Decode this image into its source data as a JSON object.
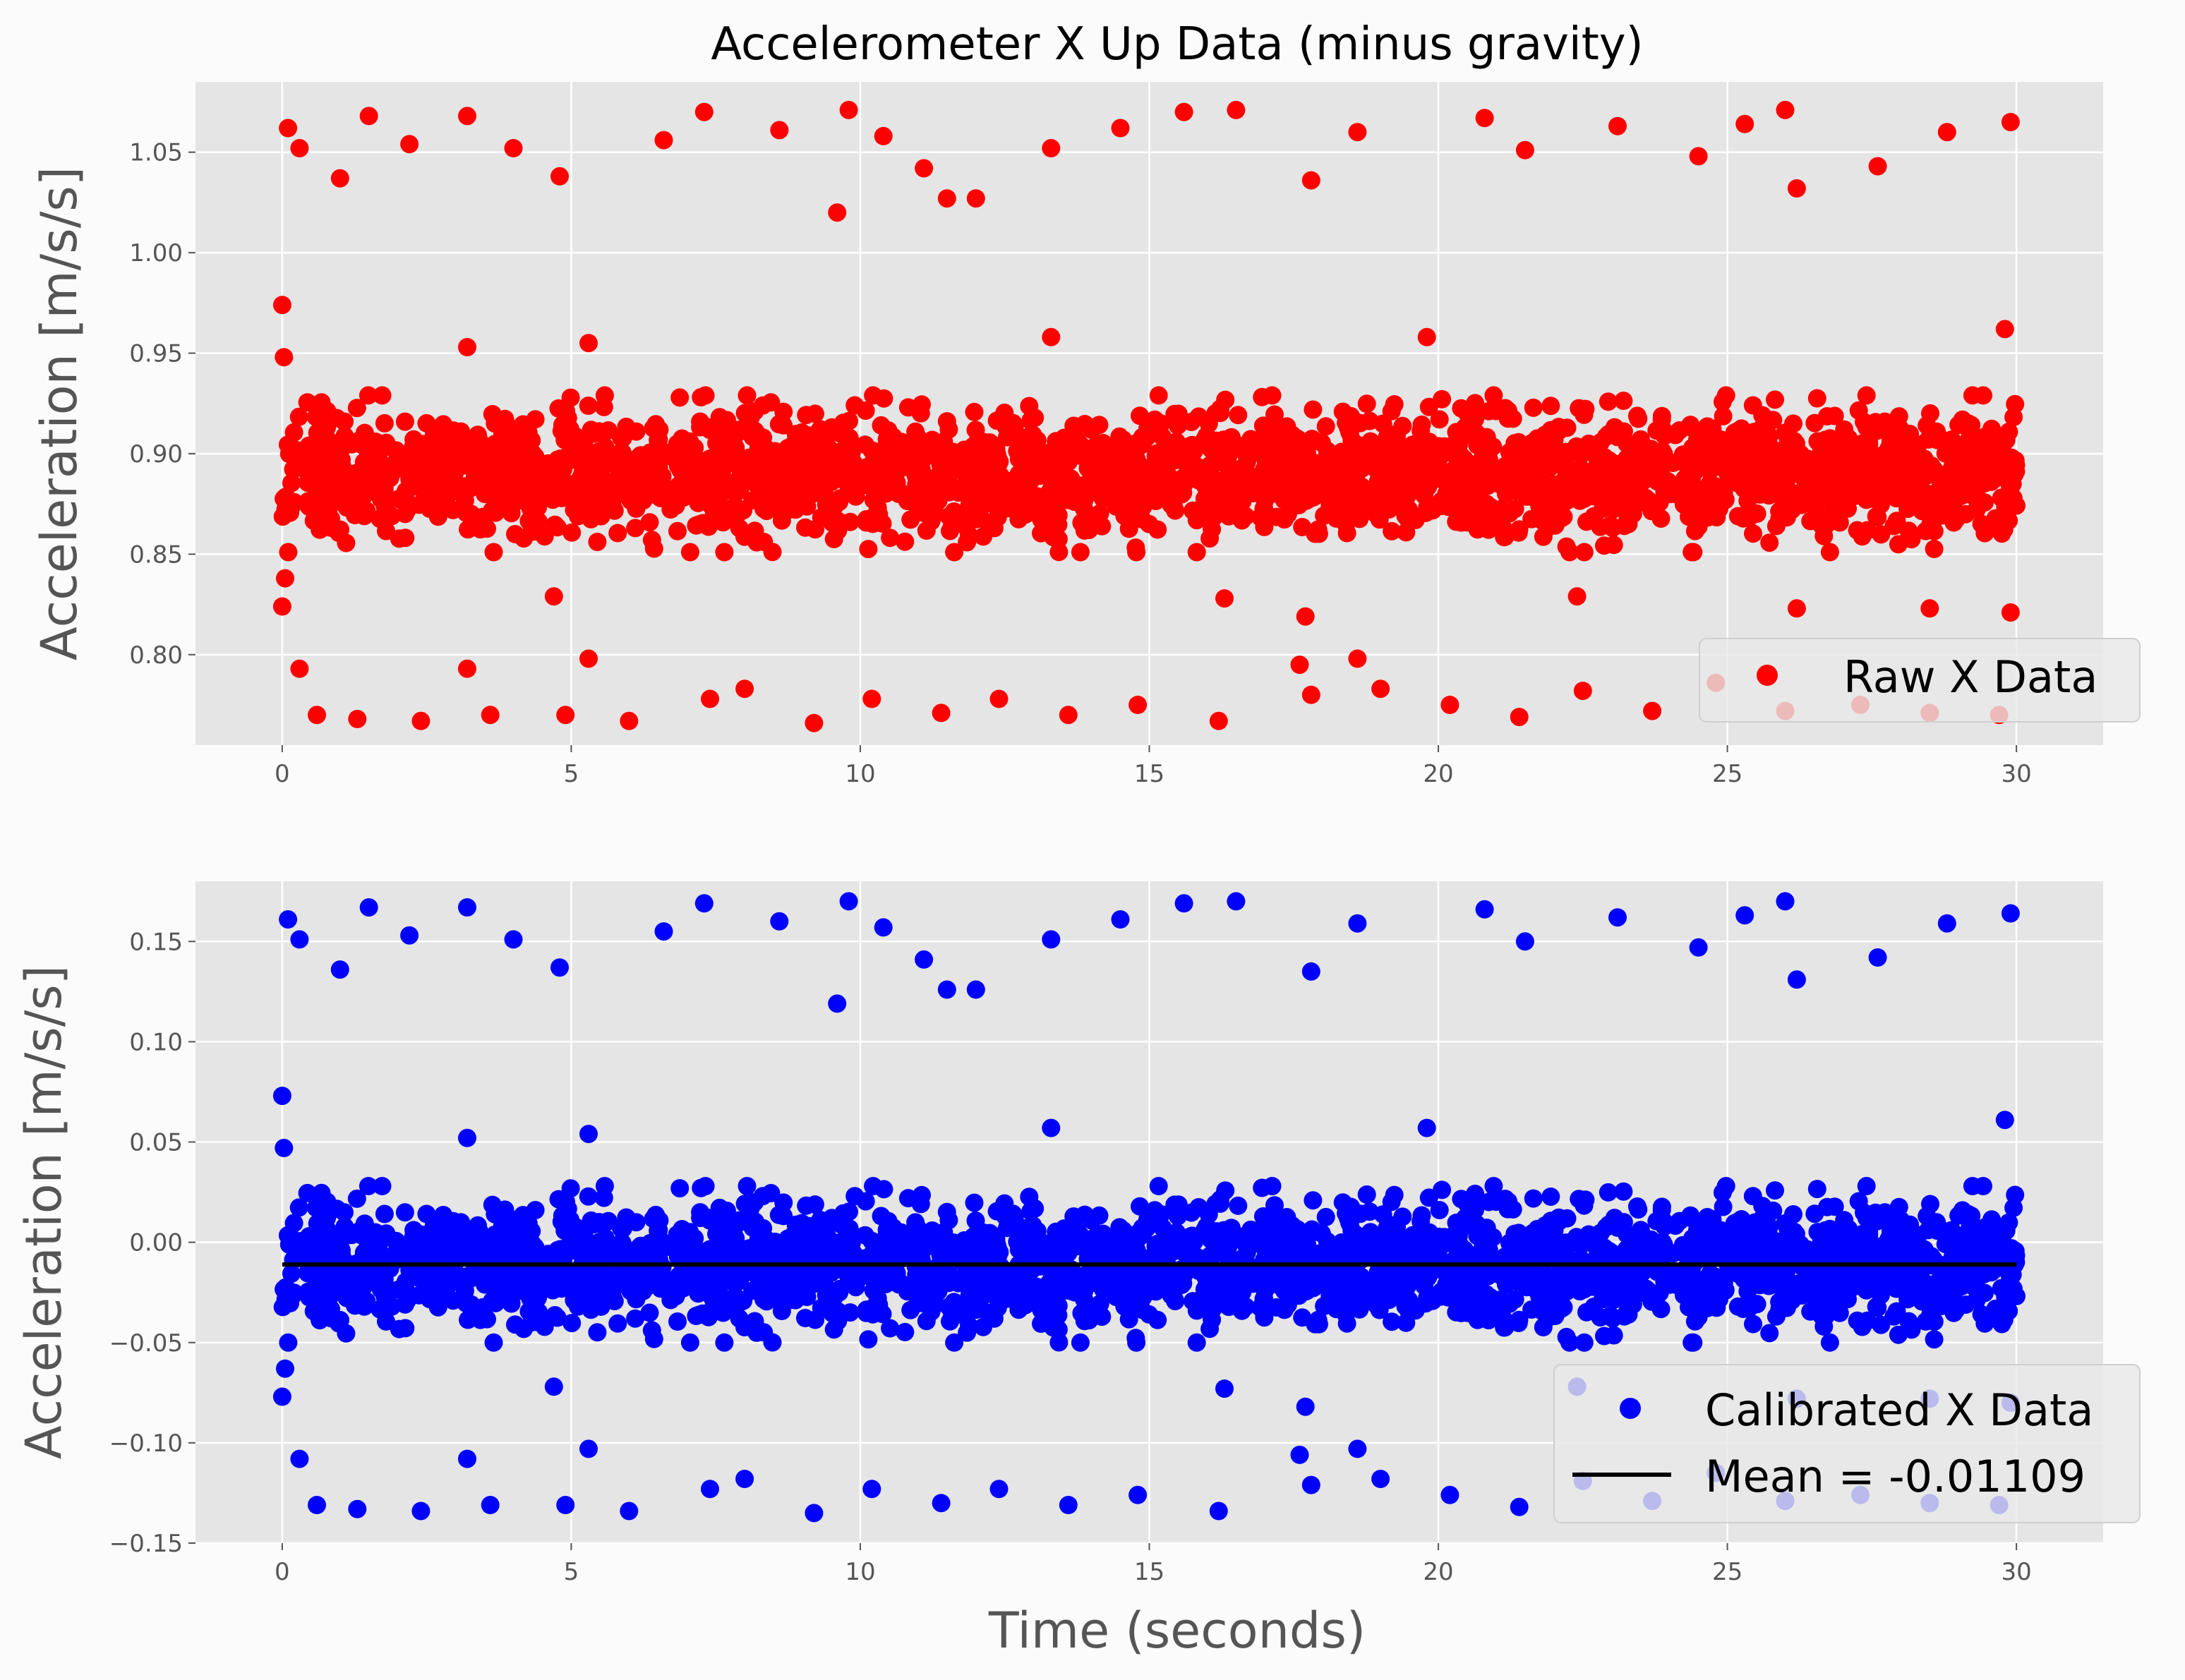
{
  "title": "Accelerometer X Up Data (minus gravity)",
  "colors": {
    "background": "#fbfbfb",
    "axes_background": "#e5e5e5",
    "grid": "#ffffff",
    "raw": "#ff0000",
    "calibrated": "#0000ff",
    "mean": "#000000"
  },
  "chart_data": [
    {
      "type": "scatter",
      "title": "Accelerometer X Up Data (minus gravity)",
      "xlabel": "",
      "ylabel": "Acceleration [m/s/s]",
      "xlim": [
        -1.5,
        31.5
      ],
      "ylim": [
        0.755,
        1.085
      ],
      "xticks": [
        0,
        5,
        10,
        15,
        20,
        25,
        30
      ],
      "xtick_labels": [
        "0",
        "5",
        "10",
        "15",
        "20",
        "25",
        "30"
      ],
      "yticks": [
        0.8,
        0.85,
        0.9,
        0.95,
        1.0,
        1.05
      ],
      "ytick_labels": [
        "0.80",
        "0.85",
        "0.90",
        "0.95",
        "1.00",
        "1.05"
      ],
      "grid": true,
      "legend_position": "lower-right",
      "series": [
        {
          "name": "Raw X Data",
          "color": "#ff0000",
          "marker": "circle",
          "x_range": [
            0,
            30
          ],
          "center": 0.89,
          "core_band": [
            0.86,
            0.92
          ],
          "outliers": [
            [
              0.0,
              0.974
            ],
            [
              0.03,
              0.948
            ],
            [
              0.0,
              0.824
            ],
            [
              0.05,
              0.838
            ],
            [
              3.2,
              0.953
            ],
            [
              5.3,
              0.955
            ],
            [
              13.3,
              0.958
            ],
            [
              19.8,
              0.958
            ],
            [
              29.8,
              0.962
            ],
            [
              17.7,
              0.819
            ],
            [
              26.2,
              0.823
            ],
            [
              28.5,
              0.823
            ],
            [
              29.9,
              0.821
            ],
            [
              16.3,
              0.828
            ],
            [
              4.7,
              0.829
            ],
            [
              22.4,
              0.829
            ],
            [
              0.3,
              0.793
            ],
            [
              3.2,
              0.793
            ],
            [
              5.3,
              0.798
            ],
            [
              17.6,
              0.795
            ],
            [
              18.6,
              0.798
            ],
            [
              9.6,
              1.02
            ],
            [
              11.5,
              1.027
            ],
            [
              12.0,
              1.027
            ],
            [
              26.2,
              1.032
            ],
            [
              0.1,
              1.062
            ],
            [
              1.5,
              1.068
            ],
            [
              3.2,
              1.068
            ],
            [
              7.3,
              1.07
            ],
            [
              9.8,
              1.071
            ],
            [
              15.6,
              1.07
            ],
            [
              16.5,
              1.071
            ],
            [
              26.0,
              1.071
            ],
            [
              29.9,
              1.065
            ],
            [
              0.3,
              1.052
            ],
            [
              2.2,
              1.054
            ],
            [
              4.0,
              1.052
            ],
            [
              6.6,
              1.056
            ],
            [
              10.4,
              1.058
            ],
            [
              13.3,
              1.052
            ],
            [
              18.6,
              1.06
            ],
            [
              20.8,
              1.067
            ],
            [
              23.1,
              1.063
            ],
            [
              25.3,
              1.064
            ],
            [
              28.8,
              1.06
            ],
            [
              1.0,
              1.037
            ],
            [
              4.8,
              1.038
            ],
            [
              8.6,
              1.061
            ],
            [
              11.1,
              1.042
            ],
            [
              14.5,
              1.062
            ],
            [
              17.8,
              1.036
            ],
            [
              21.5,
              1.051
            ],
            [
              24.5,
              1.048
            ],
            [
              27.6,
              1.043
            ],
            [
              0.6,
              0.77
            ],
            [
              1.3,
              0.768
            ],
            [
              2.4,
              0.767
            ],
            [
              3.6,
              0.77
            ],
            [
              4.9,
              0.77
            ],
            [
              6.0,
              0.767
            ],
            [
              7.4,
              0.778
            ],
            [
              8.0,
              0.783
            ],
            [
              9.2,
              0.766
            ],
            [
              10.2,
              0.778
            ],
            [
              11.4,
              0.771
            ],
            [
              12.4,
              0.778
            ],
            [
              13.6,
              0.77
            ],
            [
              14.8,
              0.775
            ],
            [
              16.2,
              0.767
            ],
            [
              17.8,
              0.78
            ],
            [
              19.0,
              0.783
            ],
            [
              20.2,
              0.775
            ],
            [
              21.4,
              0.769
            ],
            [
              22.5,
              0.782
            ],
            [
              23.7,
              0.772
            ],
            [
              24.8,
              0.786
            ],
            [
              26.0,
              0.772
            ],
            [
              27.3,
              0.775
            ],
            [
              28.5,
              0.771
            ],
            [
              29.7,
              0.77
            ]
          ]
        }
      ]
    },
    {
      "type": "scatter",
      "title": "",
      "xlabel": "Time (seconds)",
      "ylabel": "Acceleration [m/s/s]",
      "xlim": [
        -1.5,
        31.5
      ],
      "ylim": [
        -0.15,
        0.18
      ],
      "xticks": [
        0,
        5,
        10,
        15,
        20,
        25,
        30
      ],
      "xtick_labels": [
        "0",
        "5",
        "10",
        "15",
        "20",
        "25",
        "30"
      ],
      "yticks": [
        -0.15,
        -0.1,
        -0.05,
        0.0,
        0.05,
        0.1,
        0.15
      ],
      "ytick_labels": [
        "−0.15",
        "−0.10",
        "−0.05",
        "0.00",
        "0.05",
        "0.10",
        "0.15"
      ],
      "grid": true,
      "legend_position": "lower-right",
      "series": [
        {
          "name": "Calibrated X Data",
          "color": "#0000ff",
          "marker": "circle",
          "x_range": [
            0,
            30
          ],
          "center": -0.011,
          "core_band": [
            -0.041,
            0.019
          ],
          "outliers": [
            [
              0.0,
              0.073
            ],
            [
              0.03,
              0.047
            ],
            [
              0.0,
              -0.077
            ],
            [
              0.05,
              -0.063
            ],
            [
              3.2,
              0.052
            ],
            [
              5.3,
              0.054
            ],
            [
              13.3,
              0.057
            ],
            [
              19.8,
              0.057
            ],
            [
              29.8,
              0.061
            ],
            [
              17.7,
              -0.082
            ],
            [
              26.2,
              -0.078
            ],
            [
              28.5,
              -0.078
            ],
            [
              29.9,
              -0.08
            ],
            [
              16.3,
              -0.073
            ],
            [
              4.7,
              -0.072
            ],
            [
              22.4,
              -0.072
            ],
            [
              0.3,
              -0.108
            ],
            [
              3.2,
              -0.108
            ],
            [
              5.3,
              -0.103
            ],
            [
              17.6,
              -0.106
            ],
            [
              18.6,
              -0.103
            ],
            [
              9.6,
              0.119
            ],
            [
              11.5,
              0.126
            ],
            [
              12.0,
              0.126
            ],
            [
              26.2,
              0.131
            ],
            [
              0.1,
              0.161
            ],
            [
              1.5,
              0.167
            ],
            [
              3.2,
              0.167
            ],
            [
              7.3,
              0.169
            ],
            [
              9.8,
              0.17
            ],
            [
              15.6,
              0.169
            ],
            [
              16.5,
              0.17
            ],
            [
              26.0,
              0.17
            ],
            [
              29.9,
              0.164
            ],
            [
              0.3,
              0.151
            ],
            [
              2.2,
              0.153
            ],
            [
              4.0,
              0.151
            ],
            [
              6.6,
              0.155
            ],
            [
              10.4,
              0.157
            ],
            [
              13.3,
              0.151
            ],
            [
              18.6,
              0.159
            ],
            [
              20.8,
              0.166
            ],
            [
              23.1,
              0.162
            ],
            [
              25.3,
              0.163
            ],
            [
              28.8,
              0.159
            ],
            [
              1.0,
              0.136
            ],
            [
              4.8,
              0.137
            ],
            [
              8.6,
              0.16
            ],
            [
              11.1,
              0.141
            ],
            [
              14.5,
              0.161
            ],
            [
              17.8,
              0.135
            ],
            [
              21.5,
              0.15
            ],
            [
              24.5,
              0.147
            ],
            [
              27.6,
              0.142
            ],
            [
              0.6,
              -0.131
            ],
            [
              1.3,
              -0.133
            ],
            [
              2.4,
              -0.134
            ],
            [
              3.6,
              -0.131
            ],
            [
              4.9,
              -0.131
            ],
            [
              6.0,
              -0.134
            ],
            [
              7.4,
              -0.123
            ],
            [
              8.0,
              -0.118
            ],
            [
              9.2,
              -0.135
            ],
            [
              10.2,
              -0.123
            ],
            [
              11.4,
              -0.13
            ],
            [
              12.4,
              -0.123
            ],
            [
              13.6,
              -0.131
            ],
            [
              14.8,
              -0.126
            ],
            [
              16.2,
              -0.134
            ],
            [
              17.8,
              -0.121
            ],
            [
              19.0,
              -0.118
            ],
            [
              20.2,
              -0.126
            ],
            [
              21.4,
              -0.132
            ],
            [
              22.5,
              -0.119
            ],
            [
              23.7,
              -0.129
            ],
            [
              24.8,
              -0.115
            ],
            [
              26.0,
              -0.129
            ],
            [
              27.3,
              -0.126
            ],
            [
              28.5,
              -0.13
            ],
            [
              29.7,
              -0.131
            ]
          ]
        },
        {
          "name": "Mean = -0.01109",
          "color": "#000000",
          "type": "line",
          "x": [
            0,
            30
          ],
          "y": [
            -0.01109,
            -0.01109
          ]
        }
      ]
    }
  ]
}
